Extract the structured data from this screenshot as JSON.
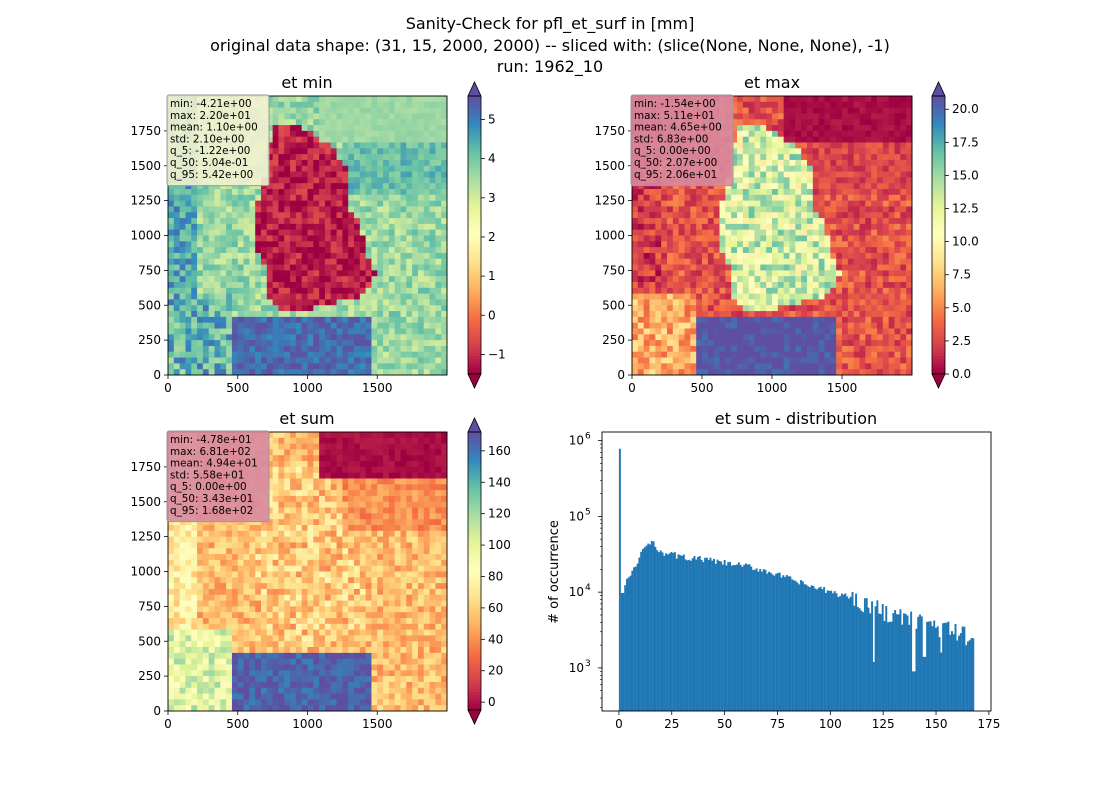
{
  "figure": {
    "suptitle_lines": [
      "Sanity-Check for pfl_et_surf in [mm]",
      "original data shape: (31, 15, 2000, 2000) -- sliced with: (slice(None, None, None), -1)",
      "run: 1962_10"
    ]
  },
  "colors": {
    "spectral": [
      "#9e0142",
      "#d53e4f",
      "#f46d43",
      "#fdae61",
      "#fee08b",
      "#ffffbf",
      "#e6f598",
      "#abdda4",
      "#66c2a5",
      "#3288bd",
      "#5e4fa2"
    ],
    "histogram_bar": "#1f77b4"
  },
  "chart_data": [
    {
      "type": "heatmap",
      "id": "et_min",
      "title": "et min",
      "xlim": [
        0,
        2000
      ],
      "ylim": [
        0,
        2000
      ],
      "x_ticks": [
        0,
        500,
        1000,
        1500
      ],
      "y_ticks": [
        0,
        250,
        500,
        750,
        1000,
        1250,
        1500,
        1750
      ],
      "colorbar": {
        "range": [
          -1.5,
          5.6
        ],
        "ticks": [
          -1,
          0,
          1,
          2,
          3,
          4,
          5
        ],
        "extend": "both",
        "cmap": "Spectral"
      },
      "stats": [
        "min: -4.21e+00",
        "max: 2.20e+01",
        "mean: 1.10e+00",
        "std: 2.10e+00",
        "q_5: -1.22e+00",
        "q_50: 5.04e-01",
        "q_95: 5.42e+00"
      ],
      "stats_box_color": "#f2f2d0",
      "field": {
        "background": 0.72,
        "germany": 0.05,
        "germany_noise": 0.08,
        "south": 0.95,
        "southwest": 0.82,
        "north_land": 0.8,
        "sea_top": 0.72,
        "west_edge": 0.85
      }
    },
    {
      "type": "heatmap",
      "id": "et_max",
      "title": "et max",
      "xlim": [
        0,
        2000
      ],
      "ylim": [
        0,
        2000
      ],
      "x_ticks": [
        0,
        500,
        1000,
        1500
      ],
      "y_ticks": [
        0,
        250,
        500,
        750,
        1000,
        1250,
        1500,
        1750
      ],
      "colorbar": {
        "range": [
          0,
          21
        ],
        "ticks": [
          0.0,
          2.5,
          5.0,
          7.5,
          10.0,
          12.5,
          15.0,
          17.5,
          20.0
        ],
        "extend": "both",
        "cmap": "Spectral"
      },
      "stats": [
        "min: -1.54e+00",
        "max: 5.11e+01",
        "mean: 4.65e+00",
        "std: 6.83e+00",
        "q_5: 0.00e+00",
        "q_50: 2.07e+00",
        "q_95: 2.06e+01"
      ],
      "stats_box_color": "#d88aa0",
      "field": {
        "background": 0.15,
        "germany": 0.62,
        "germany_noise": 0.18,
        "south": 1.0,
        "southwest": 0.3,
        "north_land": 0.12,
        "sea_top": 0.02,
        "west_edge": 0.1
      }
    },
    {
      "type": "heatmap",
      "id": "et_sum",
      "title": "et sum",
      "xlim": [
        0,
        2000
      ],
      "ylim": [
        0,
        2000
      ],
      "x_ticks": [
        0,
        500,
        1000,
        1500
      ],
      "y_ticks": [
        0,
        250,
        500,
        750,
        1000,
        1250,
        1500,
        1750
      ],
      "colorbar": {
        "range": [
          -5,
          172
        ],
        "ticks": [
          0,
          20,
          40,
          60,
          80,
          100,
          120,
          140,
          160
        ],
        "extend": "both",
        "cmap": "Spectral"
      },
      "stats": [
        "min: -4.78e+01",
        "max: 6.81e+02",
        "mean: 4.94e+01",
        "std: 5.58e+01",
        "q_5: 0.00e+00",
        "q_50: 3.43e+01",
        "q_95: 1.68e+02"
      ],
      "stats_box_color": "#d88aa0",
      "field": {
        "background": 0.33,
        "germany": 0.36,
        "germany_noise": 0.12,
        "south": 0.97,
        "southwest": 0.6,
        "north_land": 0.25,
        "sea_top": 0.02,
        "west_edge": 0.45
      }
    },
    {
      "type": "bar",
      "id": "et_sum_distribution",
      "title": "et sum - distribution",
      "ylabel": "# of occurrence",
      "xlabel": "",
      "x_scale": "linear",
      "y_scale": "log",
      "xlim": [
        -8,
        176
      ],
      "ylim": [
        270,
        1300000
      ],
      "x_ticks": [
        0,
        25,
        50,
        75,
        100,
        125,
        150,
        175
      ],
      "y_ticks": [
        {
          "value": 1000,
          "exp": "3"
        },
        {
          "value": 10000,
          "exp": "4"
        },
        {
          "value": 100000,
          "exp": "5"
        },
        {
          "value": 1000000,
          "exp": "6"
        }
      ],
      "bin_width": 0.84,
      "bins": {
        "start": 0,
        "spike": {
          "x": 0,
          "value": 780000
        },
        "anchors": [
          [
            0.8,
            9000
          ],
          [
            3,
            14000
          ],
          [
            7,
            20000
          ],
          [
            11,
            38000
          ],
          [
            15,
            45000
          ],
          [
            20,
            34000
          ],
          [
            30,
            29000
          ],
          [
            40,
            27000
          ],
          [
            50,
            24000
          ],
          [
            60,
            22000
          ],
          [
            70,
            19000
          ],
          [
            80,
            15000
          ],
          [
            90,
            12000
          ],
          [
            100,
            10000
          ],
          [
            110,
            8500
          ],
          [
            120,
            6500
          ],
          [
            130,
            5000
          ],
          [
            140,
            4200
          ],
          [
            150,
            3500
          ],
          [
            160,
            3000
          ],
          [
            168,
            2400
          ]
        ],
        "dips": [
          [
            120,
            1200
          ],
          [
            139,
            900
          ],
          [
            144,
            1400
          ],
          [
            152,
            1600
          ]
        ],
        "end": 168
      }
    }
  ]
}
